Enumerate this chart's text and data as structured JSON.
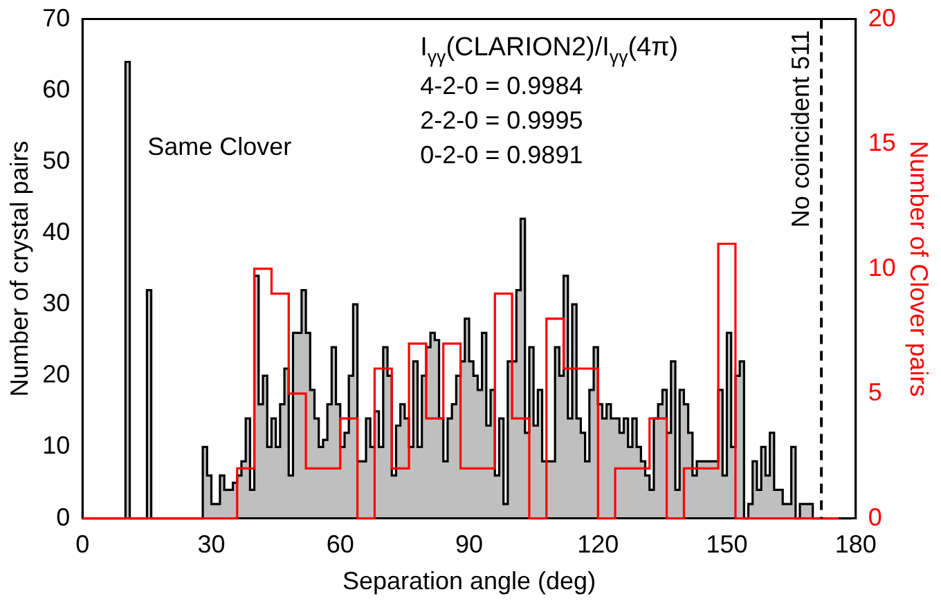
{
  "chart_data": {
    "type": "step",
    "xlabel": "Separation angle (deg)",
    "ylabel": "Number of crystal pairs",
    "y2label": "Number of Clover pairs",
    "annotations": [
      "Same Clover",
      "I$_{γγ}$(CLARION2)/I$_{γγ}$(4π)",
      "4-2-0 = 0.9984",
      "2-2-0 = 0.9995",
      "0-2-0 = 0.9891"
    ],
    "series": [
      {
        "type": "area",
        "color": "#000000",
        "x": [
          0,
          1,
          2,
          3,
          4,
          5,
          6,
          7,
          8,
          9,
          10,
          11,
          12,
          13,
          14,
          15,
          16,
          17,
          18,
          19,
          20,
          21,
          22,
          23,
          24,
          25,
          26,
          27,
          28,
          29,
          30,
          31,
          32,
          33,
          34,
          35,
          36,
          37,
          38,
          39,
          40,
          41,
          42,
          43,
          44,
          45,
          46,
          47,
          48,
          49,
          50,
          51,
          52,
          53,
          54,
          55,
          56,
          57,
          58,
          59,
          60,
          61,
          62,
          63,
          64,
          65,
          66,
          67,
          68,
          69,
          70,
          71,
          72,
          73,
          74,
          75,
          76,
          77,
          78,
          79,
          80,
          81,
          82,
          83,
          84,
          85,
          86,
          87,
          88,
          89,
          90,
          91,
          92,
          93,
          94,
          95,
          96,
          97,
          98,
          99,
          100,
          101,
          102,
          103,
          104,
          105,
          106,
          107,
          108,
          109,
          110,
          111,
          112,
          113,
          114,
          115,
          116,
          117,
          118,
          119,
          120,
          121,
          122,
          123,
          124,
          125,
          126,
          127,
          128,
          129,
          130,
          131,
          132,
          133,
          134,
          135,
          136,
          137,
          138,
          139,
          140,
          141,
          142,
          143,
          144,
          145,
          146,
          147,
          148,
          149,
          150,
          151,
          152,
          153,
          154,
          155,
          156,
          157,
          158,
          159,
          160,
          161,
          162,
          163,
          164,
          165,
          166,
          167,
          168,
          169,
          170,
          171,
          172,
          173,
          174,
          175,
          176,
          177,
          178,
          179
        ],
        "values": [
          0,
          0,
          0,
          0,
          0,
          0,
          0,
          0,
          0,
          0,
          0,
          64,
          0,
          0,
          0,
          0,
          32,
          0,
          0,
          0,
          0,
          0,
          0,
          0,
          0,
          0,
          0,
          0,
          0,
          10,
          6,
          2,
          2,
          6,
          4,
          4,
          5,
          6,
          8,
          14,
          4,
          34,
          16,
          20,
          10,
          14,
          10,
          16,
          21,
          6,
          26,
          26,
          32,
          26,
          18,
          14,
          10,
          11,
          16,
          24,
          16,
          10,
          12,
          20,
          30,
          8,
          8,
          14,
          10,
          15,
          10,
          24,
          20,
          6,
          13,
          16,
          14,
          10,
          22,
          10,
          20,
          24,
          26,
          25,
          14,
          8,
          14,
          16,
          20,
          22,
          28,
          22,
          20,
          18,
          26,
          13,
          18,
          6,
          14,
          2,
          22,
          22,
          32,
          42,
          12,
          24,
          13,
          18,
          8,
          8,
          8,
          24,
          20,
          34,
          14,
          30,
          14,
          12,
          8,
          18,
          24,
          16,
          14,
          16,
          14,
          14,
          12,
          14,
          10,
          14,
          10,
          8,
          6,
          4,
          14,
          16,
          18,
          12,
          22,
          4,
          18,
          16,
          12,
          6,
          8,
          8,
          8,
          8,
          8,
          18,
          6,
          26,
          10,
          20,
          22,
          0,
          2,
          8,
          4,
          10,
          6,
          12,
          4,
          4,
          2,
          2,
          10,
          0,
          2,
          2,
          2,
          0,
          0,
          0,
          0,
          0,
          0,
          0,
          0,
          0
        ]
      },
      {
        "color": "#ff0000",
        "axis": "y2",
        "x": [
          0,
          4,
          8,
          12,
          16,
          20,
          24,
          28,
          32,
          36,
          40,
          44,
          48,
          52,
          56,
          60,
          64,
          68,
          72,
          76,
          80,
          84,
          88,
          92,
          96,
          100,
          104,
          108,
          112,
          116,
          120,
          124,
          128,
          132,
          136,
          140,
          144,
          148,
          152,
          156,
          160,
          164,
          168,
          172,
          176
        ],
        "values": [
          0,
          0,
          0,
          0,
          0,
          0,
          0,
          0,
          0,
          0,
          2,
          10,
          9,
          5,
          2,
          2,
          4,
          0,
          6,
          2,
          7,
          4,
          7,
          2,
          2,
          9,
          4,
          0,
          8,
          6,
          6,
          0,
          2,
          2,
          4,
          0,
          2,
          2,
          11,
          0,
          0,
          0,
          0,
          0,
          0
        ]
      }
    ],
    "xlim": [
      0,
      180
    ],
    "xticks": [
      0,
      30,
      60,
      90,
      120,
      150,
      180
    ],
    "ylim": [
      0,
      70
    ],
    "yticks": [
      0,
      10,
      20,
      30,
      40,
      50,
      60,
      70
    ],
    "y2lim": [
      0,
      20
    ],
    "y2ticks": [
      0,
      5,
      10,
      15,
      20
    ],
    "ref_lines": [
      {
        "axis": "x",
        "value": 172,
        "label": "No coincident 511",
        "color": "#000000",
        "line_style": "dashed"
      }
    ],
    "grid": false,
    "legend": false
  }
}
